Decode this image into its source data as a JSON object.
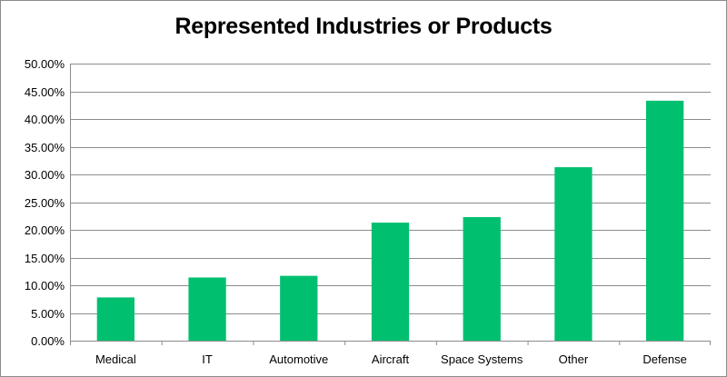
{
  "chart_data": {
    "type": "bar",
    "title": "Represented Industries or Products",
    "xlabel": "",
    "ylabel": "",
    "categories": [
      "Medical",
      "IT",
      "Automotive",
      "Aircraft",
      "Space Systems",
      "Other",
      "Defense"
    ],
    "values": [
      7.8,
      11.4,
      11.7,
      21.3,
      22.3,
      31.3,
      43.3
    ],
    "ylim": [
      0,
      50
    ],
    "yticks": [
      "0.00%",
      "5.00%",
      "10.00%",
      "15.00%",
      "20.00%",
      "25.00%",
      "30.00%",
      "35.00%",
      "40.00%",
      "45.00%",
      "50.00%"
    ],
    "grid": true,
    "legend": "none",
    "bar_color": "#00c070",
    "grid_color": "#8c8c8c"
  }
}
